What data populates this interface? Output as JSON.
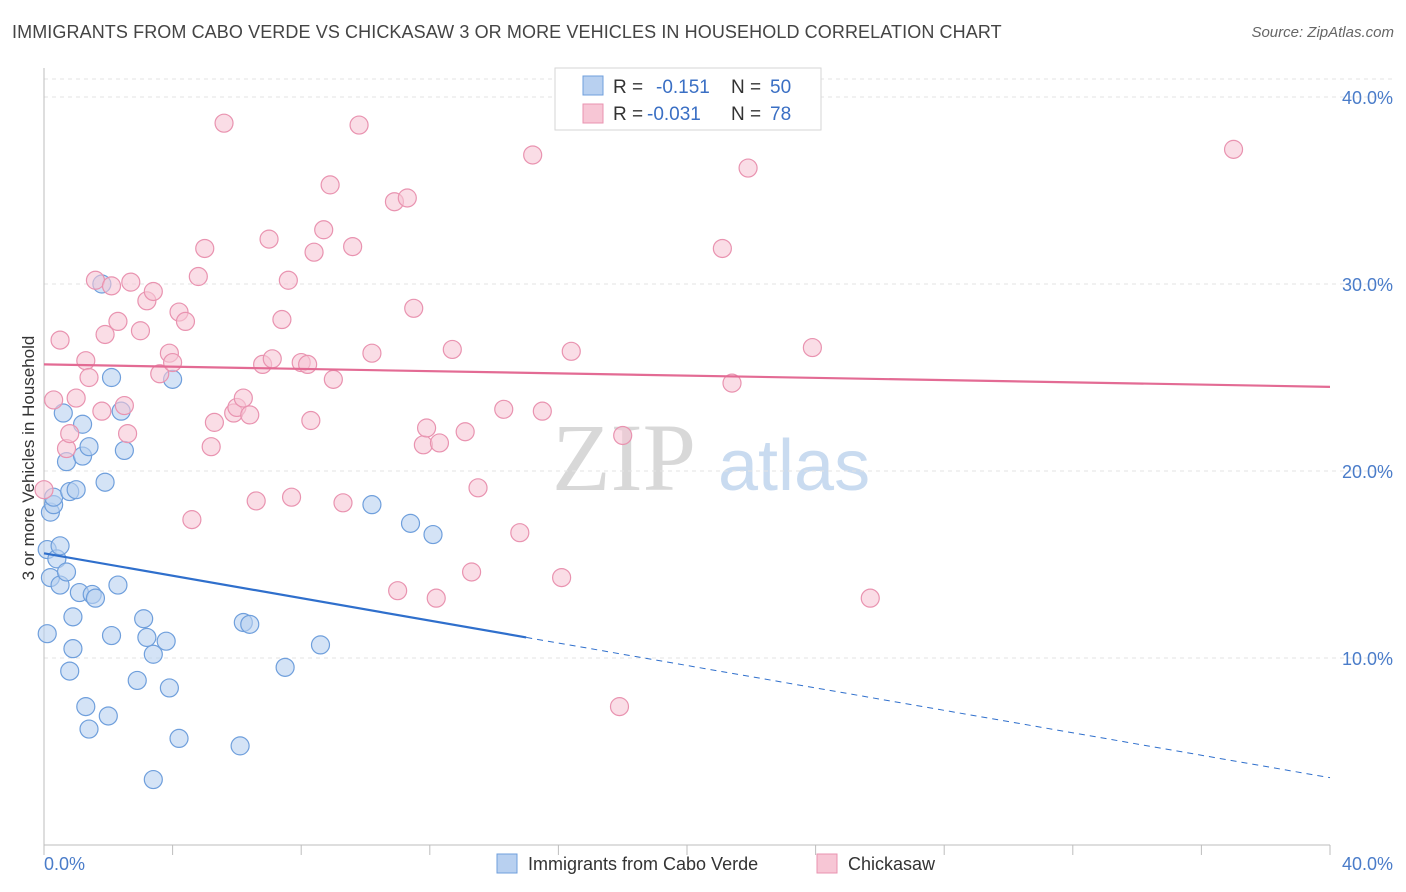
{
  "title": "IMMIGRANTS FROM CABO VERDE VS CHICKASAW 3 OR MORE VEHICLES IN HOUSEHOLD CORRELATION CHART",
  "source": "Source: ZipAtlas.com",
  "watermark": {
    "zip": "ZIP",
    "atlas": "atlas"
  },
  "colors": {
    "blue_fill": "#b8d0f0",
    "blue_stroke": "#6f9fdc",
    "blue_line": "#2f6fcc",
    "pink_fill": "#f7c6d5",
    "pink_stroke": "#e993b0",
    "pink_line": "#e36b94",
    "tick_text": "#4a7cc9",
    "grid": "#e3e3e3"
  },
  "legend_top": [
    {
      "r_label": "R =",
      "r_value": "-0.151",
      "n_label": "N =",
      "n_value": "50"
    },
    {
      "r_label": "R =",
      "r_value": "-0.031",
      "n_label": "N =",
      "n_value": "78"
    }
  ],
  "chart_data": {
    "type": "scatter",
    "title": "IMMIGRANTS FROM CABO VERDE VS CHICKASAW 3 OR MORE VEHICLES IN HOUSEHOLD CORRELATION CHART",
    "xlabel": "",
    "ylabel": "3 or more Vehicles in Household",
    "xlim": [
      0,
      40
    ],
    "ylim": [
      0,
      41
    ],
    "x_tick_labels": [
      "0.0%",
      "40.0%"
    ],
    "y_ticks": [
      {
        "value": 10,
        "label": "10.0%"
      },
      {
        "value": 20,
        "label": "20.0%"
      },
      {
        "value": 30,
        "label": "30.0%"
      },
      {
        "value": 40,
        "label": "40.0%"
      }
    ],
    "grid": true,
    "legend_position": "bottom-center",
    "series": [
      {
        "name": "Immigrants from Cabo Verde",
        "trend": {
          "x1": 0,
          "y1": 15.6,
          "x2": 15.0,
          "y2": 11.1,
          "dash_to_x": 40,
          "dash_to_y": 3.6
        },
        "points": [
          [
            0.1,
            11.3
          ],
          [
            0.1,
            15.8
          ],
          [
            0.2,
            14.3
          ],
          [
            0.2,
            17.8
          ],
          [
            0.3,
            18.2
          ],
          [
            0.3,
            18.6
          ],
          [
            0.4,
            15.3
          ],
          [
            0.5,
            16.0
          ],
          [
            0.5,
            13.9
          ],
          [
            0.6,
            23.1
          ],
          [
            0.7,
            14.6
          ],
          [
            0.7,
            20.5
          ],
          [
            0.8,
            18.9
          ],
          [
            0.8,
            9.3
          ],
          [
            0.9,
            12.2
          ],
          [
            0.9,
            10.5
          ],
          [
            1.0,
            19.0
          ],
          [
            1.1,
            13.5
          ],
          [
            1.2,
            22.5
          ],
          [
            1.2,
            20.8
          ],
          [
            1.3,
            7.4
          ],
          [
            1.4,
            21.3
          ],
          [
            1.4,
            6.2
          ],
          [
            1.5,
            13.4
          ],
          [
            1.6,
            13.2
          ],
          [
            1.8,
            30.0
          ],
          [
            1.9,
            19.4
          ],
          [
            2.0,
            6.9
          ],
          [
            2.1,
            11.2
          ],
          [
            2.1,
            25.0
          ],
          [
            2.3,
            13.9
          ],
          [
            2.4,
            23.2
          ],
          [
            2.5,
            21.1
          ],
          [
            2.9,
            8.8
          ],
          [
            3.1,
            12.1
          ],
          [
            3.2,
            11.1
          ],
          [
            3.4,
            3.5
          ],
          [
            3.4,
            10.2
          ],
          [
            3.8,
            10.9
          ],
          [
            3.9,
            8.4
          ],
          [
            4.0,
            24.9
          ],
          [
            4.2,
            5.7
          ],
          [
            6.1,
            5.3
          ],
          [
            6.2,
            11.9
          ],
          [
            6.4,
            11.8
          ],
          [
            7.5,
            9.5
          ],
          [
            8.6,
            10.7
          ],
          [
            10.2,
            18.2
          ],
          [
            11.4,
            17.2
          ],
          [
            12.1,
            16.6
          ]
        ]
      },
      {
        "name": "Chickasaw",
        "trend": {
          "x1": 0,
          "y1": 25.7,
          "x2": 40,
          "y2": 24.5
        },
        "points": [
          [
            0.0,
            19.0
          ],
          [
            0.3,
            23.8
          ],
          [
            0.5,
            27.0
          ],
          [
            0.7,
            21.2
          ],
          [
            0.8,
            22.0
          ],
          [
            1.0,
            23.9
          ],
          [
            1.3,
            25.9
          ],
          [
            1.4,
            25.0
          ],
          [
            1.6,
            30.2
          ],
          [
            1.8,
            23.2
          ],
          [
            1.9,
            27.3
          ],
          [
            2.1,
            29.9
          ],
          [
            2.3,
            28.0
          ],
          [
            2.5,
            23.5
          ],
          [
            2.6,
            22.0
          ],
          [
            2.7,
            30.1
          ],
          [
            3.0,
            27.5
          ],
          [
            3.2,
            29.1
          ],
          [
            3.4,
            29.6
          ],
          [
            3.6,
            25.2
          ],
          [
            3.9,
            26.3
          ],
          [
            4.0,
            25.8
          ],
          [
            4.2,
            28.5
          ],
          [
            4.4,
            28.0
          ],
          [
            4.6,
            17.4
          ],
          [
            4.8,
            30.4
          ],
          [
            5.0,
            31.9
          ],
          [
            5.2,
            21.3
          ],
          [
            5.3,
            22.6
          ],
          [
            5.6,
            38.6
          ],
          [
            5.9,
            23.1
          ],
          [
            6.0,
            23.4
          ],
          [
            6.2,
            23.9
          ],
          [
            6.4,
            23.0
          ],
          [
            6.6,
            18.4
          ],
          [
            6.8,
            25.7
          ],
          [
            7.0,
            32.4
          ],
          [
            7.1,
            26.0
          ],
          [
            7.4,
            28.1
          ],
          [
            7.6,
            30.2
          ],
          [
            7.7,
            18.6
          ],
          [
            8.0,
            25.8
          ],
          [
            8.2,
            25.7
          ],
          [
            8.3,
            22.7
          ],
          [
            8.4,
            31.7
          ],
          [
            8.7,
            32.9
          ],
          [
            8.9,
            35.3
          ],
          [
            9.0,
            24.9
          ],
          [
            9.3,
            18.3
          ],
          [
            9.6,
            32.0
          ],
          [
            9.8,
            38.5
          ],
          [
            10.2,
            26.3
          ],
          [
            10.9,
            34.4
          ],
          [
            11.0,
            13.6
          ],
          [
            11.3,
            34.6
          ],
          [
            11.5,
            28.7
          ],
          [
            11.8,
            21.4
          ],
          [
            11.9,
            22.3
          ],
          [
            12.2,
            13.2
          ],
          [
            12.3,
            21.5
          ],
          [
            12.7,
            26.5
          ],
          [
            13.1,
            22.1
          ],
          [
            13.3,
            14.6
          ],
          [
            13.5,
            19.1
          ],
          [
            14.3,
            23.3
          ],
          [
            14.8,
            16.7
          ],
          [
            15.2,
            36.9
          ],
          [
            15.5,
            23.2
          ],
          [
            16.1,
            14.3
          ],
          [
            16.4,
            26.4
          ],
          [
            17.9,
            7.4
          ],
          [
            18.0,
            21.9
          ],
          [
            21.1,
            31.9
          ],
          [
            21.4,
            24.7
          ],
          [
            21.9,
            36.2
          ],
          [
            23.9,
            26.6
          ],
          [
            25.7,
            13.2
          ],
          [
            37.0,
            37.2
          ]
        ]
      }
    ]
  }
}
